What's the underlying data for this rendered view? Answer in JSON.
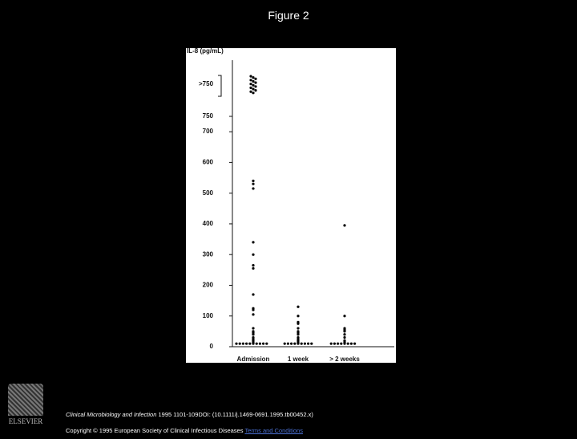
{
  "title": "Figure 2",
  "chart_data": {
    "type": "strip",
    "y_label": "IL-8 (pg/mL)",
    "break_label": ">750",
    "categories": [
      "Admission",
      "1 week",
      "> 2 weeks"
    ],
    "series": [
      {
        "name": "Admission",
        "color": "#000000",
        "values": [
          540,
          530,
          515,
          340,
          300,
          265,
          255,
          170,
          125,
          120,
          105,
          60,
          50,
          45,
          40,
          30,
          25,
          20,
          15,
          10,
          10,
          10,
          10,
          10,
          10,
          10,
          10,
          10,
          10
        ]
      },
      {
        "name": "1 week",
        "color": "#000000",
        "values": [
          130,
          100,
          80,
          75,
          60,
          50,
          45,
          40,
          30,
          25,
          20,
          15,
          10,
          10,
          10,
          10,
          10,
          10,
          10,
          10,
          10
        ]
      },
      {
        "name": "> 2 weeks",
        "color": "#000000",
        "values": [
          395,
          100,
          60,
          55,
          50,
          40,
          30,
          20,
          15,
          10,
          10,
          10,
          10,
          10,
          10,
          10,
          10
        ]
      }
    ],
    "above_break_counts": [
      14,
      0,
      0
    ],
    "ylim": [
      0,
      750
    ],
    "yticks": [
      0,
      100,
      200,
      300,
      400,
      500,
      600,
      700,
      750
    ]
  },
  "footer": {
    "journal": "Clinical Microbiology and Infection",
    "citation": " 1995 1101-109DOI: (10.1111/j.1469-0691.1995.tb00452.x)",
    "copyright": "Copyright © 1995 European Society of Clinical Infectious Diseases ",
    "link": "Terms and Conditions",
    "logo": "ELSEVIER"
  }
}
